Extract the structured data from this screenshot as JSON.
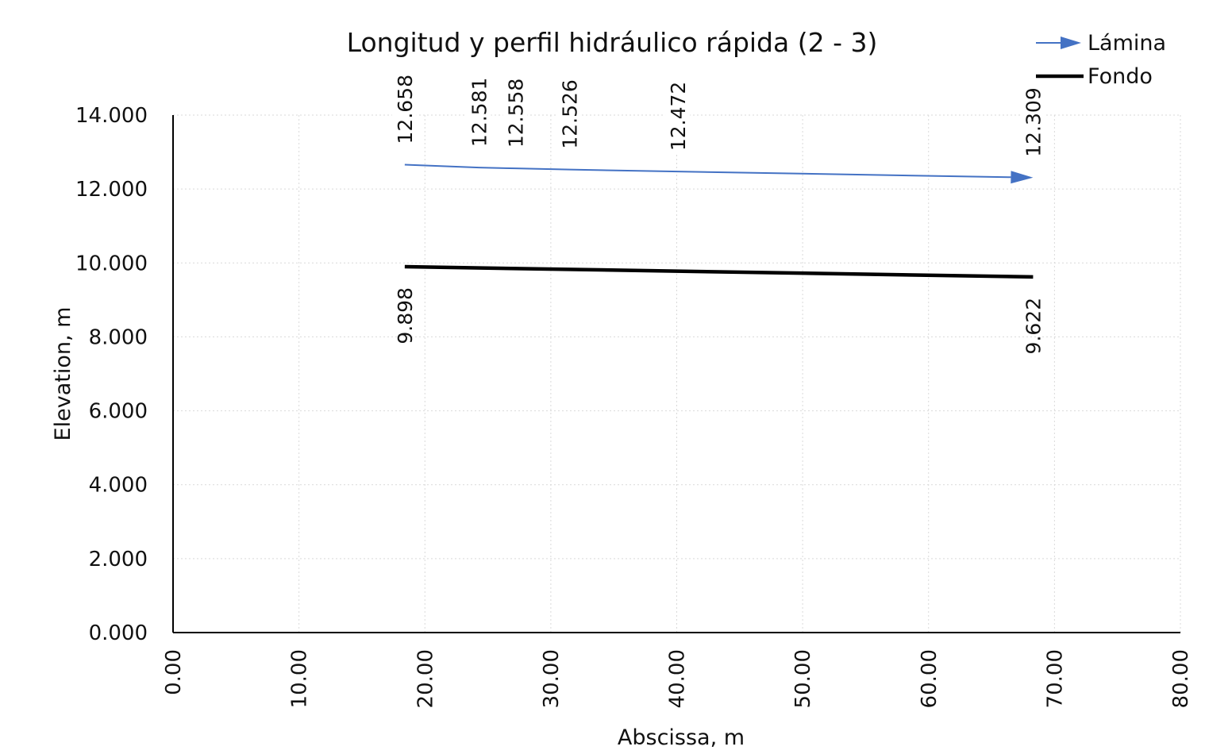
{
  "chart_data": {
    "type": "line",
    "title": "Longitud y perfil hidráulico rápida (2 - 3)",
    "xlabel": "Abscissa, m",
    "ylabel": "Elevation, m",
    "xlim": [
      0,
      80
    ],
    "ylim": [
      0,
      14
    ],
    "x_ticks": [
      "0.00",
      "10.00",
      "20.00",
      "30.00",
      "40.00",
      "50.00",
      "60.00",
      "70.00",
      "80.00"
    ],
    "y_ticks": [
      "0.000",
      "2.000",
      "4.000",
      "6.000",
      "8.000",
      "10.000",
      "12.000",
      "14.000"
    ],
    "grid": true,
    "legend_position": "top-right",
    "series": [
      {
        "name": "Lámina",
        "color": "#4472C4",
        "marker": "arrow-end",
        "points": [
          {
            "x": 18.4,
            "y": 12.658,
            "label": "12.658"
          },
          {
            "x": 24.3,
            "y": 12.581,
            "label": "12.581"
          },
          {
            "x": 27.2,
            "y": 12.558,
            "label": "12.558"
          },
          {
            "x": 31.5,
            "y": 12.526,
            "label": "12.526"
          },
          {
            "x": 40.1,
            "y": 12.472,
            "label": "12.472"
          },
          {
            "x": 68.3,
            "y": 12.309,
            "label": "12.309"
          }
        ]
      },
      {
        "name": "Fondo",
        "color": "#000000",
        "points": [
          {
            "x": 18.4,
            "y": 9.898,
            "label": "9.898"
          },
          {
            "x": 68.3,
            "y": 9.622,
            "label": "9.622"
          }
        ]
      }
    ]
  }
}
